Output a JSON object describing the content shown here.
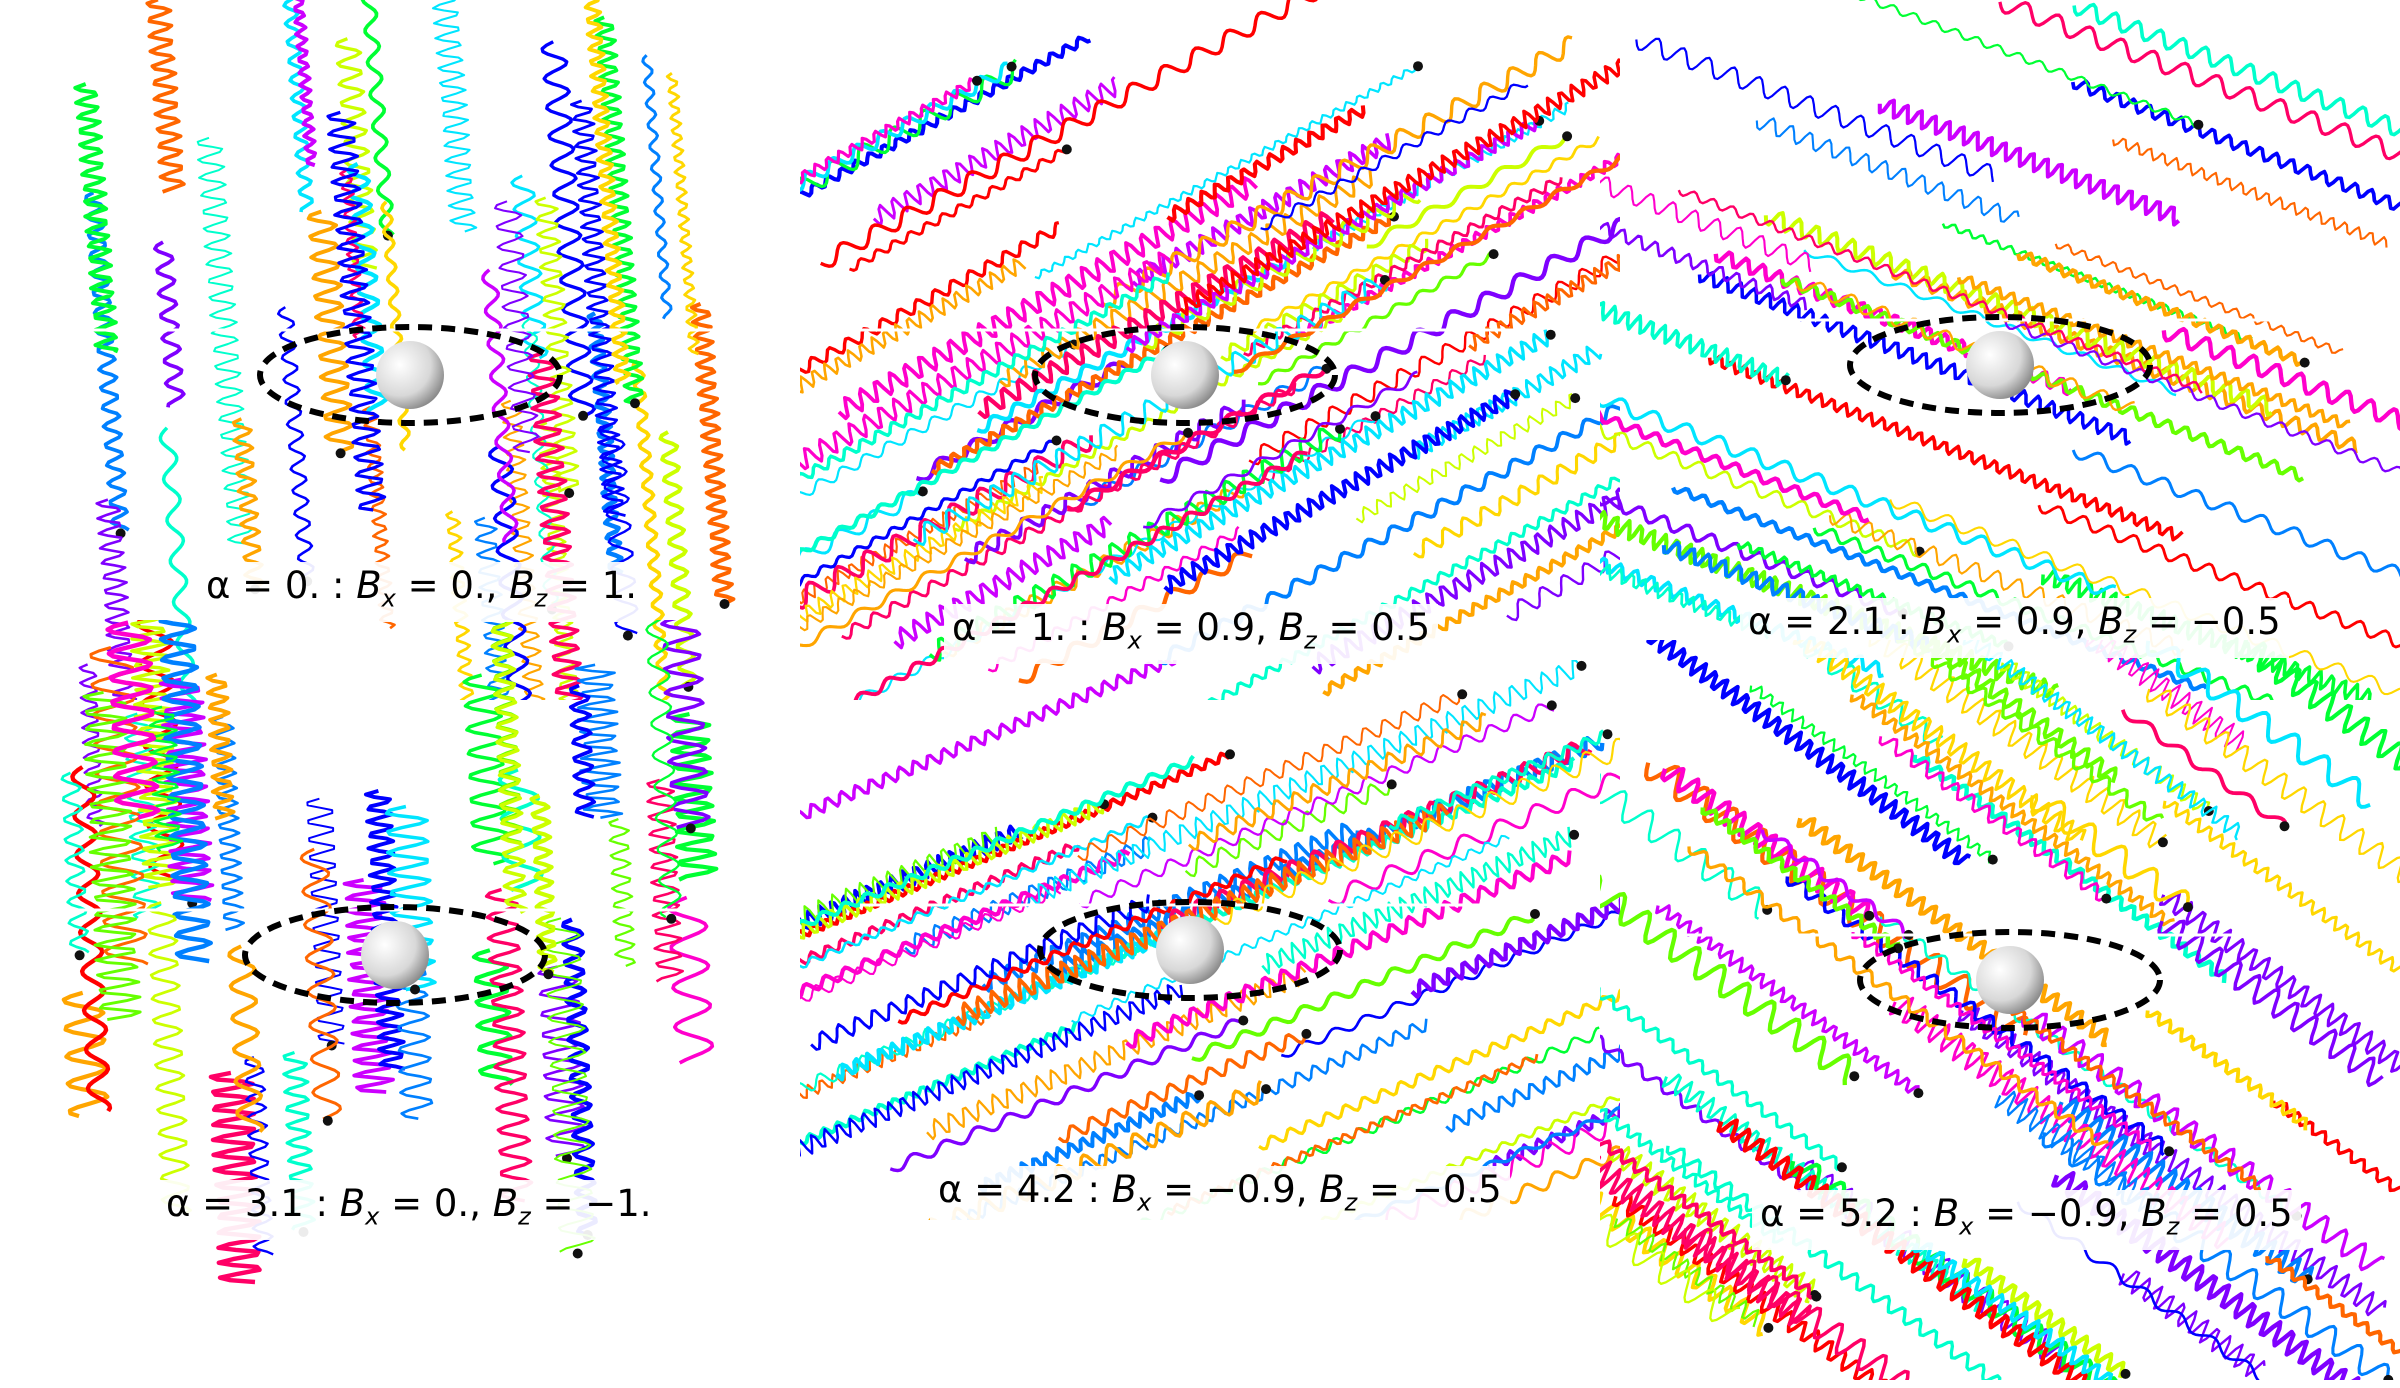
{
  "figure": {
    "panels": [
      {
        "alpha": "0.",
        "bx": "0.",
        "bz": "1."
      },
      {
        "alpha": "1.",
        "bx": "0.9",
        "bz": "0.5"
      },
      {
        "alpha": "2.1",
        "bx": "0.9",
        "bz": "−0.5"
      },
      {
        "alpha": "3.1",
        "bx": "0.",
        "bz": "−1."
      },
      {
        "alpha": "4.2",
        "bx": "−0.9",
        "bz": "−0.5"
      },
      {
        "alpha": "5.2",
        "bx": "−0.9",
        "bz": "0.5"
      }
    ],
    "symbols": {
      "alpha": "α",
      "b": "B",
      "x": "x",
      "z": "z"
    },
    "palette": [
      "#ff0000",
      "#ff6600",
      "#ffa500",
      "#ffd700",
      "#ccff00",
      "#66ff00",
      "#00ff33",
      "#00ffcc",
      "#00e5ff",
      "#0080ff",
      "#0000ff",
      "#7f00ff",
      "#cc00ff",
      "#ff00cc",
      "#ff0066"
    ]
  }
}
